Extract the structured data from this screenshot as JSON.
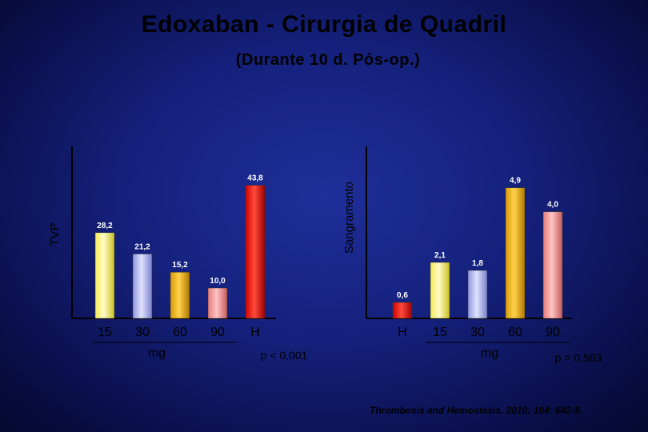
{
  "title": "Edoxaban  -  Cirurgia  de  Quadril",
  "subtitle": "(Durante  10  d.  Pós-op.)",
  "citation": "Thrombosis and Hemostasis. 2010; 104: 642-9.",
  "colors": {
    "bar_15": "#f5ec55",
    "bar_30": "#a8aef2",
    "bar_60": "#e0a510",
    "bar_90": "#f28b8b",
    "bar_H": "#e81010",
    "axis": "#000000"
  },
  "chart_data": [
    {
      "type": "bar",
      "ylabel": "TVP",
      "categories": [
        "15",
        "30",
        "60",
        "90",
        "H"
      ],
      "values": [
        28.2,
        21.2,
        15.2,
        10.0,
        43.8
      ],
      "data_labels": [
        "28,2",
        "21,2",
        "15,2",
        "10,0",
        "43,8"
      ],
      "unit_label": "mg",
      "pvalue": "p < 0,001",
      "ylim": [
        0,
        50
      ],
      "grid": false
    },
    {
      "type": "bar",
      "ylabel": "Sangramento",
      "categories": [
        "H",
        "15",
        "30",
        "60",
        "90"
      ],
      "values": [
        0.6,
        2.1,
        1.8,
        4.9,
        4.0
      ],
      "data_labels": [
        "0,6",
        "2,1",
        "1,8",
        "4,9",
        "4,0"
      ],
      "unit_label": "mg",
      "pvalue": "p = 0,583",
      "ylim": [
        0,
        5.7
      ],
      "grid": false
    }
  ]
}
